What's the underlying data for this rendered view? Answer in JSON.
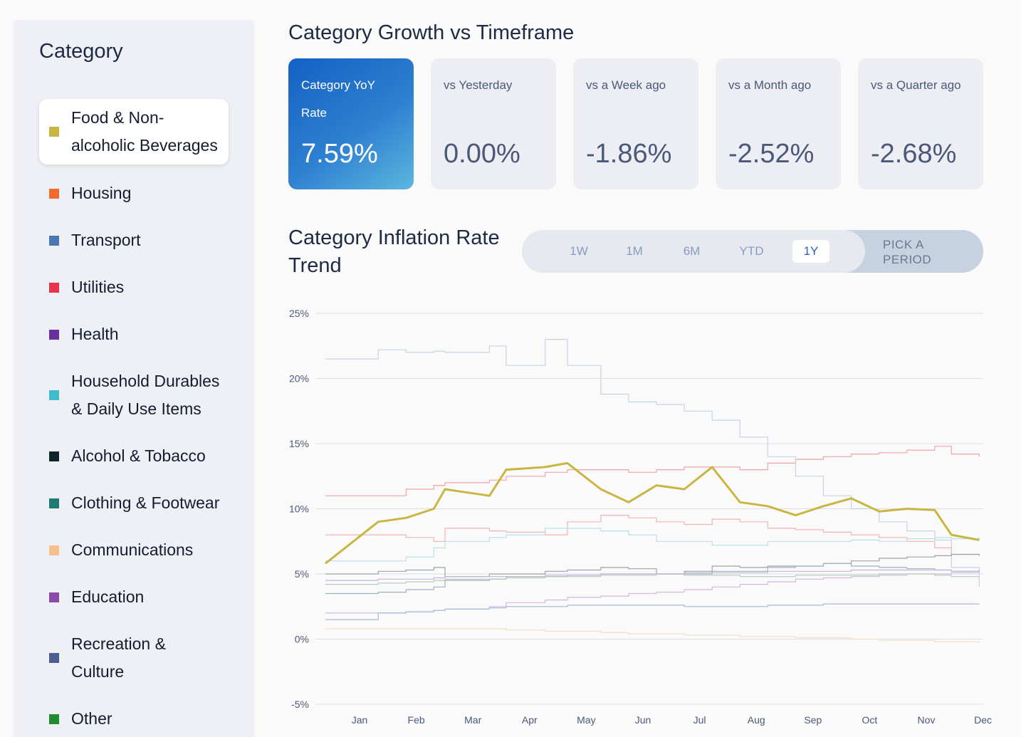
{
  "sidebar": {
    "title": "Category",
    "items": [
      {
        "label_lines": [
          "Food & Non-",
          "alcoholic Beverages"
        ],
        "color": "#c9b642",
        "active": true
      },
      {
        "label_lines": [
          "Housing"
        ],
        "color": "#f26b2a"
      },
      {
        "label_lines": [
          "Transport"
        ],
        "color": "#4a78b5"
      },
      {
        "label_lines": [
          "Utilities"
        ],
        "color": "#e8334a"
      },
      {
        "label_lines": [
          "Health"
        ],
        "color": "#6a2fa0"
      },
      {
        "label_lines": [
          "Household Durables",
          "& Daily Use Items"
        ],
        "color": "#3fbcd0"
      },
      {
        "label_lines": [
          "Alcohol & Tobacco"
        ],
        "color": "#10252b"
      },
      {
        "label_lines": [
          "Clothing & Footwear"
        ],
        "color": "#1f7a72"
      },
      {
        "label_lines": [
          "Communications"
        ],
        "color": "#f6c08e"
      },
      {
        "label_lines": [
          "Education"
        ],
        "color": "#8a4aa8"
      },
      {
        "label_lines": [
          "Recreation &",
          "Culture"
        ],
        "color": "#4a5f8f"
      },
      {
        "label_lines": [
          "Other"
        ],
        "color": "#1f8a2e"
      }
    ]
  },
  "header": {
    "title": "Category Growth vs Timeframe"
  },
  "cards": [
    {
      "label": "Category YoY Rate",
      "value": "7.59%",
      "primary": true
    },
    {
      "label": "vs Yesterday",
      "value": "0.00%"
    },
    {
      "label": "vs a Week ago",
      "value": "-1.86%"
    },
    {
      "label": "vs a Month ago",
      "value": "-2.52%"
    },
    {
      "label": "vs a Quarter ago",
      "value": "-2.68%"
    }
  ],
  "trend": {
    "title": "Category Inflation Rate Trend",
    "periods": [
      "1W",
      "1M",
      "6M",
      "YTD",
      "1Y"
    ],
    "selected_period": "1Y",
    "pick_period": "PICK A PERIOD"
  },
  "chart_data": {
    "type": "line",
    "title": "Category Inflation Rate Trend",
    "xlabel": "",
    "ylabel": "",
    "ylim": [
      -5,
      25
    ],
    "yticks": [
      "25%",
      "20%",
      "15%",
      "10%",
      "5%",
      "0%",
      "-5%"
    ],
    "ytick_values": [
      25,
      20,
      15,
      10,
      5,
      0,
      -5
    ],
    "months": [
      "Jan",
      "Feb",
      "Mar",
      "Apr",
      "May",
      "Jun",
      "Jul",
      "Aug",
      "Sep",
      "Oct",
      "Nov",
      "Dec"
    ],
    "x_positions": [
      0.05,
      1,
      1.5,
      2,
      2.2,
      3,
      3.3,
      4,
      4.4,
      5,
      5.5,
      6,
      6.5,
      7,
      7.5,
      8,
      8.5,
      9,
      9.5,
      10,
      10.5,
      11,
      11.3,
      11.8
    ],
    "series": [
      {
        "name": "Food & Non-alcoholic Beverages",
        "color": "#c9b642",
        "highlight": true,
        "values": [
          5.8,
          9.0,
          9.3,
          10.0,
          11.5,
          11.0,
          13.0,
          13.2,
          13.5,
          11.5,
          10.5,
          11.8,
          11.5,
          13.2,
          10.5,
          10.2,
          9.5,
          10.2,
          10.8,
          9.8,
          10.0,
          9.9,
          8.0,
          7.6
        ]
      },
      {
        "name": "Housing",
        "color": "#f5a3a3",
        "values": [
          11.0,
          11.0,
          11.5,
          11.8,
          12.0,
          12.2,
          12.5,
          12.8,
          13.0,
          13.0,
          12.8,
          13.0,
          13.2,
          13.2,
          13.0,
          13.5,
          13.8,
          14.0,
          14.2,
          14.3,
          14.5,
          14.8,
          14.2,
          14.0
        ]
      },
      {
        "name": "Transport",
        "color": "#c6d3e6",
        "values": [
          21.5,
          22.2,
          22.0,
          22.1,
          22.0,
          22.5,
          21.0,
          23.0,
          21.0,
          18.8,
          18.2,
          18.0,
          17.5,
          16.8,
          15.5,
          14.0,
          12.5,
          11.0,
          10.0,
          9.0,
          8.3,
          7.6,
          5.5,
          4.0
        ]
      },
      {
        "name": "Utilities",
        "color": "#f2b3b3",
        "values": [
          8.0,
          8.0,
          7.8,
          7.5,
          8.5,
          8.3,
          8.2,
          8.0,
          9.0,
          9.5,
          9.3,
          9.0,
          8.8,
          9.2,
          9.0,
          8.5,
          8.4,
          8.2,
          8.0,
          7.8,
          7.5,
          7.0,
          6.5,
          6.4
        ]
      },
      {
        "name": "Household Durables",
        "color": "#b8e0ea",
        "values": [
          6.0,
          6.0,
          6.3,
          7.0,
          7.5,
          7.8,
          8.0,
          8.5,
          8.5,
          8.3,
          8.0,
          7.5,
          7.5,
          7.2,
          7.2,
          7.5,
          7.5,
          7.5,
          7.6,
          7.5,
          7.7,
          7.8,
          7.7,
          7.8
        ]
      },
      {
        "name": "Alcohol & Tobacco",
        "color": "#9aa4aa",
        "values": [
          5.0,
          5.2,
          5.3,
          5.5,
          4.8,
          5.0,
          5.0,
          5.2,
          5.3,
          5.5,
          5.4,
          5.0,
          5.2,
          5.6,
          5.5,
          5.6,
          5.6,
          5.8,
          6.0,
          6.2,
          6.3,
          6.4,
          6.5,
          6.4
        ]
      },
      {
        "name": "Clothing & Footwear",
        "color": "#9cb3c0",
        "values": [
          3.5,
          3.6,
          3.8,
          4.0,
          4.5,
          4.6,
          4.8,
          4.8,
          4.9,
          5.0,
          5.0,
          5.0,
          5.0,
          5.2,
          5.2,
          5.5,
          5.6,
          5.8,
          5.6,
          5.5,
          5.4,
          5.3,
          5.2,
          5.3
        ]
      },
      {
        "name": "Communications",
        "color": "#f8dcc2",
        "values": [
          0.8,
          0.8,
          0.8,
          0.8,
          0.8,
          0.8,
          0.7,
          0.6,
          0.6,
          0.5,
          0.4,
          0.4,
          0.3,
          0.3,
          0.2,
          0.2,
          0.1,
          0.1,
          0.0,
          -0.1,
          -0.1,
          -0.2,
          -0.2,
          -0.3
        ]
      },
      {
        "name": "Education",
        "color": "#d2b8e0",
        "values": [
          2.0,
          2.0,
          2.1,
          2.2,
          2.3,
          2.5,
          2.8,
          3.0,
          3.2,
          3.3,
          3.5,
          3.6,
          3.8,
          4.0,
          4.2,
          4.4,
          4.6,
          4.7,
          4.8,
          4.9,
          5.0,
          5.0,
          5.1,
          5.2
        ]
      },
      {
        "name": "Recreation & Culture",
        "color": "#a9b8d8",
        "values": [
          1.5,
          2.0,
          2.1,
          2.2,
          2.3,
          2.4,
          2.5,
          2.5,
          2.6,
          2.6,
          2.6,
          2.6,
          2.5,
          2.5,
          2.5,
          2.6,
          2.6,
          2.7,
          2.7,
          2.7,
          2.7,
          2.7,
          2.7,
          2.7
        ]
      },
      {
        "name": "Other",
        "color": "#b3cbb8",
        "values": [
          4.2,
          4.3,
          4.4,
          4.5,
          4.6,
          4.6,
          4.7,
          4.8,
          4.8,
          4.9,
          4.9,
          5.0,
          4.9,
          4.9,
          4.8,
          4.8,
          4.9,
          4.9,
          4.9,
          5.0,
          5.0,
          4.9,
          4.8,
          4.8
        ]
      },
      {
        "name": "Health",
        "color": "#c5b3dd",
        "values": [
          4.5,
          4.6,
          4.6,
          4.7,
          4.8,
          4.8,
          4.8,
          4.9,
          4.9,
          5.0,
          5.0,
          5.0,
          5.1,
          5.1,
          5.1,
          5.2,
          5.2,
          5.2,
          5.3,
          5.3,
          5.3,
          5.3,
          5.2,
          5.2
        ]
      }
    ]
  }
}
